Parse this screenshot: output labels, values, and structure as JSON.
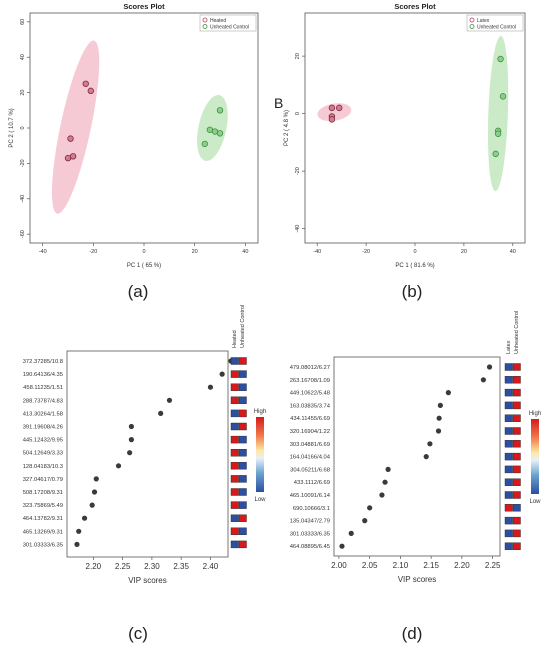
{
  "panel_letters": {
    "a": "(a)",
    "b": "(b)",
    "c": "(c)",
    "d": "(d)"
  },
  "b_marker": "B",
  "colors": {
    "heated": "#e8a3b4",
    "heated_fill": "#f3b8c6",
    "heated_edge": "#c0405c",
    "control": "#9fd49f",
    "control_fill": "#b9e3b5",
    "control_edge": "#3f8f3f",
    "dot": "#3a3a3a",
    "high": "#d7191c",
    "low": "#2c4ea3"
  },
  "chart_data": [
    {
      "id": "a",
      "type": "scatter",
      "title": "Scores Plot",
      "xlabel": "PC 1 ( 65 %)",
      "ylabel": "PC 2 ( 10.7 %)",
      "xlim": [
        -45,
        45
      ],
      "ylim": [
        -65,
        65
      ],
      "xticks": [
        -40,
        -20,
        0,
        20,
        40
      ],
      "yticks": [
        -60,
        -40,
        -20,
        0,
        20,
        40,
        60
      ],
      "legend": [
        "Heated",
        "Unheated Control"
      ],
      "legend_position": "top-right",
      "series": [
        {
          "name": "Heated",
          "points": [
            [
              -23,
              25
            ],
            [
              -21,
              21
            ],
            [
              -29,
              -6
            ],
            [
              -30,
              -17
            ],
            [
              -28,
              -16
            ]
          ]
        },
        {
          "name": "Unheated Control",
          "points": [
            [
              30,
              10
            ],
            [
              26,
              -1
            ],
            [
              28,
              -2
            ],
            [
              30,
              -3
            ],
            [
              24,
              -9
            ]
          ]
        }
      ],
      "ellipses": [
        {
          "series": "Heated",
          "cx": -27,
          "cy": 0.5,
          "rx": 6,
          "ry": 50,
          "angle": 12
        },
        {
          "series": "Unheated Control",
          "cx": 27,
          "cy": 0,
          "rx": 5.5,
          "ry": 19,
          "angle": 12
        }
      ]
    },
    {
      "id": "b",
      "type": "scatter",
      "title": "Scores Plot",
      "xlabel": "PC 1 ( 81.6 %)",
      "ylabel": "PC 2 ( 4.8 %)",
      "xlim": [
        -45,
        45
      ],
      "ylim": [
        -45,
        35
      ],
      "xticks": [
        -40,
        -20,
        0,
        20,
        40
      ],
      "yticks": [
        -40,
        -20,
        0,
        20
      ],
      "legend": [
        "Latex",
        "Unheated Control"
      ],
      "legend_position": "top-right",
      "series": [
        {
          "name": "Latex",
          "points": [
            [
              -34,
              2
            ],
            [
              -31,
              2
            ],
            [
              -34,
              -1
            ],
            [
              -34,
              -2
            ]
          ]
        },
        {
          "name": "Unheated Control",
          "points": [
            [
              35,
              19
            ],
            [
              36,
              6
            ],
            [
              34,
              -6
            ],
            [
              34,
              -7
            ],
            [
              33,
              -14
            ]
          ]
        }
      ],
      "ellipses": [
        {
          "series": "Latex",
          "cx": -33,
          "cy": 0.5,
          "rx": 7,
          "ry": 3,
          "angle": -10
        },
        {
          "series": "Unheated Control",
          "cx": 34,
          "cy": 0,
          "rx": 4,
          "ry": 27,
          "angle": 2
        }
      ]
    },
    {
      "id": "c",
      "type": "scatter",
      "xlabel": "VIP scores",
      "xlim": [
        2.155,
        2.43
      ],
      "xticks": [
        2.2,
        2.25,
        2.3,
        2.35,
        2.4
      ],
      "column_headers": [
        "Heated",
        "Unheated Control"
      ],
      "colorbar": {
        "high": "High",
        "low": "Low"
      },
      "features": [
        "372.37285/10.8",
        "190.64136/4.35",
        "458.11235/1.51",
        "288.73787/4.83",
        "413.30264/1.58",
        "391.19608/4.26",
        "445.12432/9.95",
        "504.12649/3.33",
        "128.04183/10.3",
        "327.04617/0.79",
        "508.17208/9.31",
        "323.75869/5.49",
        "464.13782/9.31",
        "465.13269/9.31",
        "301.03333/6.35"
      ],
      "values": [
        2.435,
        2.42,
        2.4,
        2.33,
        2.315,
        2.265,
        2.265,
        2.262,
        2.243,
        2.205,
        2.202,
        2.198,
        2.185,
        2.175,
        2.172
      ],
      "heat": [
        [
          "low",
          "high"
        ],
        [
          "high",
          "low"
        ],
        [
          "high",
          "low"
        ],
        [
          "high",
          "low"
        ],
        [
          "low",
          "high"
        ],
        [
          "low",
          "high"
        ],
        [
          "high",
          "low"
        ],
        [
          "high",
          "low"
        ],
        [
          "high",
          "low"
        ],
        [
          "high",
          "low"
        ],
        [
          "high",
          "low"
        ],
        [
          "high",
          "low"
        ],
        [
          "low",
          "high"
        ],
        [
          "high",
          "low"
        ],
        [
          "low",
          "high"
        ]
      ]
    },
    {
      "id": "d",
      "type": "scatter",
      "xlabel": "VIP scores",
      "xlim": [
        1.992,
        2.262
      ],
      "xticks": [
        2.0,
        2.05,
        2.1,
        2.15,
        2.2,
        2.25
      ],
      "tick_labels": [
        "2.00",
        "2.05",
        "2.10",
        "2.15",
        "2.20",
        "2.25"
      ],
      "column_headers": [
        "Latex",
        "Unheated Control"
      ],
      "colorbar": {
        "high": "High",
        "low": "Low"
      },
      "features": [
        "479.08012/6.27",
        "263.16708/1.09",
        "449.10622/5.48",
        "163.03835/3.74",
        "434.11455/6.69",
        "320.16904/1.22",
        "303.04881/6.69",
        "164.04166/4.04",
        "304.05211/6.68",
        "433.1112/6.69",
        "465.10091/6.14",
        "690.10666/3.1",
        "135.04347/2.79",
        "301.03333/6.35",
        "464.08895/6.45"
      ],
      "values": [
        2.245,
        2.235,
        2.178,
        2.165,
        2.163,
        2.162,
        2.148,
        2.142,
        2.08,
        2.075,
        2.07,
        2.05,
        2.042,
        2.02,
        2.005
      ],
      "heat": [
        [
          "low",
          "high"
        ],
        [
          "low",
          "high"
        ],
        [
          "low",
          "high"
        ],
        [
          "low",
          "high"
        ],
        [
          "low",
          "high"
        ],
        [
          "low",
          "high"
        ],
        [
          "low",
          "high"
        ],
        [
          "low",
          "high"
        ],
        [
          "low",
          "high"
        ],
        [
          "low",
          "high"
        ],
        [
          "low",
          "high"
        ],
        [
          "high",
          "low"
        ],
        [
          "low",
          "high"
        ],
        [
          "low",
          "high"
        ],
        [
          "low",
          "high"
        ]
      ]
    }
  ]
}
